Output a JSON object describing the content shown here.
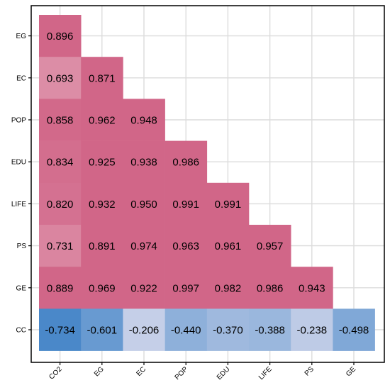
{
  "chart_data": {
    "type": "heatmap",
    "title": "",
    "xlabel": "",
    "ylabel": "",
    "x_labels": [
      "CO2",
      "EG",
      "EC",
      "POP",
      "EDU",
      "LIFE",
      "PS",
      "GE"
    ],
    "y_labels": [
      "EG",
      "EC",
      "POP",
      "EDU",
      "LIFE",
      "PS",
      "GE",
      "CC"
    ],
    "lower_triangle_only": true,
    "grid": true,
    "matrix": [
      [
        "0.896"
      ],
      [
        "0.693",
        "0.871"
      ],
      [
        "0.858",
        "0.962",
        "0.948"
      ],
      [
        "0.834",
        "0.925",
        "0.938",
        "0.986"
      ],
      [
        "0.820",
        "0.932",
        "0.950",
        "0.991",
        "0.991"
      ],
      [
        "0.731",
        "0.891",
        "0.974",
        "0.963",
        "0.961",
        "0.957"
      ],
      [
        "0.889",
        "0.969",
        "0.922",
        "0.997",
        "0.982",
        "0.986",
        "0.943"
      ],
      [
        "-0.734",
        "-0.601",
        "-0.206",
        "-0.440",
        "-0.370",
        "-0.388",
        "-0.238",
        "-0.498"
      ]
    ],
    "colors": {
      "positive": "#d16688",
      "negative": "#4a88c9",
      "neutral": "#ffffff",
      "grid": "#dcdcdc",
      "frame": "#000000"
    }
  }
}
